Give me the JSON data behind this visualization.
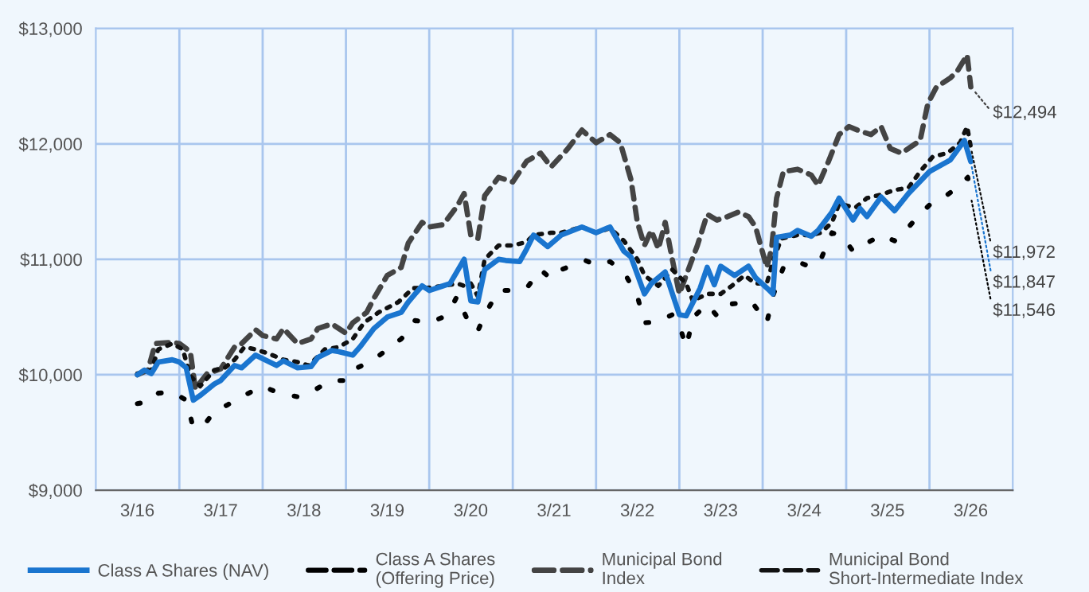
{
  "chart_data": {
    "type": "line",
    "xlim": [
      "2015-09",
      "2026-09"
    ],
    "ylim": [
      9000,
      13000
    ],
    "xticks": [
      {
        "value": "2016-03",
        "label": "3/16"
      },
      {
        "value": "2016-09",
        "label": null
      },
      {
        "value": "2017-03",
        "label": "3/17"
      },
      {
        "value": "2017-09",
        "label": null
      },
      {
        "value": "2018-03",
        "label": "3/18"
      },
      {
        "value": "2018-09",
        "label": null
      },
      {
        "value": "2019-03",
        "label": "3/19"
      },
      {
        "value": "2019-09",
        "label": null
      },
      {
        "value": "2020-03",
        "label": "3/20"
      },
      {
        "value": "2020-09",
        "label": null
      },
      {
        "value": "2021-03",
        "label": "3/21"
      },
      {
        "value": "2021-09",
        "label": null
      },
      {
        "value": "2022-03",
        "label": "3/22"
      },
      {
        "value": "2022-09",
        "label": null
      },
      {
        "value": "2023-03",
        "label": "3/23"
      },
      {
        "value": "2023-09",
        "label": null
      },
      {
        "value": "2024-03",
        "label": "3/24"
      },
      {
        "value": "2024-09",
        "label": null
      },
      {
        "value": "2025-03",
        "label": "3/25"
      },
      {
        "value": "2025-09",
        "label": null
      },
      {
        "value": "2026-03",
        "label": "3/26"
      }
    ],
    "yticks": [
      {
        "value": 9000,
        "label": "$9,000"
      },
      {
        "value": 10000,
        "label": "$10,000"
      },
      {
        "value": 11000,
        "label": "$11,000"
      },
      {
        "value": 12000,
        "label": "$12,000"
      },
      {
        "value": 13000,
        "label": "$13,000"
      }
    ],
    "grid": true,
    "legend": "bottom",
    "series": [
      {
        "name": "Class A Shares (NAV)",
        "color": "#1a75cf",
        "line_style": "solid",
        "x": [
          "2016-03",
          "2016-04",
          "2016-05",
          "2016-06",
          "2016-08",
          "2016-09",
          "2016-10",
          "2016-11",
          "2016-12",
          "2017-02",
          "2017-03",
          "2017-05",
          "2017-06",
          "2017-08",
          "2017-09",
          "2017-11",
          "2017-12",
          "2018-02",
          "2018-04",
          "2018-05",
          "2018-07",
          "2018-08",
          "2018-10",
          "2018-11",
          "2019-01",
          "2019-03",
          "2019-05",
          "2019-06",
          "2019-07",
          "2019-08",
          "2019-09",
          "2019-11",
          "2019-12",
          "2020-02",
          "2020-03",
          "2020-04",
          "2020-05",
          "2020-07",
          "2020-08",
          "2020-10",
          "2020-11",
          "2020-12",
          "2021-02",
          "2021-04",
          "2021-07",
          "2021-09",
          "2021-11",
          "2022-01",
          "2022-02",
          "2022-04",
          "2022-05",
          "2022-07",
          "2022-09",
          "2022-10",
          "2022-12",
          "2023-01",
          "2023-02",
          "2023-03",
          "2023-05",
          "2023-07",
          "2023-08",
          "2023-10",
          "2023-10-16",
          "2023-11",
          "2024-01",
          "2024-02",
          "2024-04",
          "2024-05",
          "2024-07",
          "2024-08",
          "2024-10",
          "2024-11",
          "2024-12",
          "2025-02",
          "2025-04",
          "2025-06",
          "2025-09",
          "2025-12",
          "2026-02",
          "2026-03"
        ],
        "values": [
          10000,
          10040,
          10010,
          10110,
          10130,
          10110,
          10060,
          9780,
          9820,
          9920,
          9950,
          10080,
          10060,
          10170,
          10140,
          10080,
          10120,
          10060,
          10070,
          10150,
          10210,
          10200,
          10170,
          10240,
          10400,
          10500,
          10540,
          10630,
          10700,
          10770,
          10730,
          10770,
          10790,
          11000,
          10640,
          10630,
          10910,
          11000,
          10990,
          10980,
          11090,
          11210,
          11110,
          11210,
          11280,
          11230,
          11280,
          11070,
          11020,
          10700,
          10790,
          10890,
          10520,
          10510,
          10750,
          10930,
          10780,
          10940,
          10860,
          10940,
          10840,
          10730,
          10700,
          11190,
          11210,
          11250,
          11200,
          11250,
          11410,
          11530,
          11340,
          11440,
          11370,
          11540,
          11420,
          11570,
          11760,
          11860,
          12030,
          11847
        ]
      },
      {
        "name": "Class A Shares\n(Offering Price)",
        "color": "#000000",
        "line_style": "dotted",
        "x": [
          "2016-03",
          "2016-05",
          "2016-06",
          "2016-08",
          "2016-10",
          "2016-11",
          "2017-01",
          "2017-02",
          "2017-04",
          "2017-06",
          "2017-09",
          "2017-11",
          "2018-01",
          "2018-02",
          "2018-04",
          "2018-06",
          "2018-07",
          "2018-09",
          "2018-10",
          "2019-01",
          "2019-03",
          "2019-05",
          "2019-06",
          "2019-07",
          "2019-09",
          "2019-11",
          "2019-12",
          "2020-01",
          "2020-03",
          "2020-04",
          "2020-05",
          "2020-07",
          "2020-09",
          "2020-11",
          "2021-01",
          "2021-02-16",
          "2021-04",
          "2021-07-16",
          "2021-09",
          "2021-11",
          "2022-01",
          "2022-03",
          "2022-04",
          "2022-06",
          "2022-08",
          "2022-09",
          "2022-10",
          "2022-11",
          "2023-01",
          "2023-02-13",
          "2023-04",
          "2023-07-16",
          "2023-09-19",
          "2023-10-19",
          "2023-12",
          "2024-02",
          "2024-04",
          "2024-05-13",
          "2024-07",
          "2024-08-19",
          "2024-10",
          "2024-12",
          "2025-02",
          "2025-04",
          "2025-05-19",
          "2025-07-22",
          "2025-09-16",
          "2025-11-19",
          "2026-01",
          "2026-02-16",
          "2026-03"
        ],
        "values": [
          9750,
          9770,
          9840,
          9850,
          9780,
          9540,
          9600,
          9680,
          9740,
          9810,
          9900,
          9850,
          9820,
          9810,
          9850,
          9920,
          9950,
          9950,
          10040,
          10130,
          10220,
          10310,
          10380,
          10470,
          10450,
          10500,
          10560,
          10680,
          10410,
          10380,
          10520,
          10730,
          10730,
          10750,
          10910,
          10830,
          10910,
          10990,
          10950,
          10980,
          10890,
          10680,
          10450,
          10460,
          10520,
          10430,
          10240,
          10500,
          10610,
          10510,
          10610,
          10630,
          10450,
          10700,
          10930,
          10980,
          10930,
          11000,
          11230,
          11190,
          11070,
          11140,
          11210,
          11160,
          11250,
          11390,
          11500,
          11560,
          11620,
          11710,
          11546
        ]
      },
      {
        "name": "Municipal Bond\nIndex",
        "color": "#444444",
        "line_style": "dashed",
        "x": [
          "2016-03",
          "2016-04-16",
          "2016-05-19",
          "2016-08",
          "2016-09",
          "2016-10-19",
          "2016-11-10",
          "2017-01",
          "2017-03",
          "2017-05",
          "2017-06",
          "2017-08",
          "2017-09",
          "2017-11",
          "2017-12",
          "2018-02",
          "2018-04",
          "2018-05",
          "2018-07",
          "2018-09",
          "2018-10",
          "2018-12",
          "2019-01",
          "2019-03",
          "2019-05",
          "2019-06",
          "2019-08",
          "2019-09",
          "2019-11",
          "2020-01",
          "2020-02",
          "2020-03",
          "2020-04",
          "2020-05",
          "2020-07",
          "2020-09",
          "2020-11",
          "2021-01",
          "2021-02-16",
          "2021-05",
          "2021-07",
          "2021-09",
          "2021-11",
          "2021-12-16",
          "2022-02",
          "2022-03",
          "2022-04",
          "2022-05",
          "2022-06",
          "2022-07",
          "2022-08",
          "2022-09",
          "2022-10",
          "2022-11-19",
          "2023-01",
          "2023-02-13",
          "2023-04",
          "2023-05-19",
          "2023-07",
          "2023-08",
          "2023-09-19",
          "2023-10-10",
          "2023-11",
          "2023-12",
          "2024-02",
          "2024-04",
          "2024-05",
          "2024-06-16",
          "2024-08",
          "2024-09-13",
          "2024-11",
          "2024-12-19",
          "2025-02",
          "2025-03-13",
          "2025-05",
          "2025-06",
          "2025-07-22",
          "2025-08-25",
          "2025-10",
          "2025-12",
          "2026-01",
          "2026-02-13",
          "2026-03"
        ],
        "values": [
          10000,
          10040,
          10270,
          10280,
          10270,
          10200,
          9880,
          10010,
          10050,
          10240,
          10270,
          10390,
          10340,
          10310,
          10400,
          10270,
          10310,
          10400,
          10440,
          10360,
          10450,
          10540,
          10660,
          10860,
          10930,
          11140,
          11320,
          11280,
          11300,
          11460,
          11570,
          11210,
          11180,
          11550,
          11710,
          11670,
          11850,
          11920,
          11800,
          11960,
          12120,
          12010,
          12080,
          12010,
          11690,
          11320,
          11120,
          11250,
          11090,
          11320,
          11000,
          10700,
          10860,
          11120,
          11390,
          11340,
          11370,
          11410,
          11370,
          11280,
          10930,
          11090,
          11530,
          11760,
          11780,
          11730,
          11640,
          11850,
          12080,
          12150,
          12110,
          12080,
          12150,
          11960,
          11920,
          11960,
          12030,
          12350,
          12490,
          12570,
          12630,
          12770,
          12494
        ]
      },
      {
        "name": "Municipal Bond\nShort-Intermediate Index",
        "color": "#111111",
        "line_style": "dotted",
        "x": [
          "2016-03",
          "2016-05",
          "2016-06",
          "2016-08",
          "2016-09-16",
          "2016-10-19",
          "2016-12",
          "2017-02",
          "2017-03-19",
          "2017-05",
          "2017-06-13",
          "2017-08",
          "2017-10",
          "2017-12",
          "2018-02",
          "2018-03-22",
          "2018-06",
          "2018-08",
          "2018-10",
          "2018-11-19",
          "2019-01-22",
          "2019-04-19",
          "2019-06-22",
          "2019-08-16",
          "2019-11",
          "2020-01",
          "2020-02",
          "2020-03",
          "2020-04",
          "2020-05",
          "2020-07",
          "2020-09",
          "2020-11",
          "2020-12",
          "2021-02-16",
          "2021-04",
          "2021-07",
          "2021-09",
          "2021-11",
          "2022-01",
          "2022-03",
          "2022-04",
          "2022-06",
          "2022-08",
          "2022-10",
          "2022-11",
          "2022-11-19",
          "2023-01",
          "2023-03",
          "2023-04-19",
          "2023-06-13",
          "2023-08",
          "2023-09-19",
          "2023-10-19",
          "2023-11-22",
          "2024-02",
          "2024-04",
          "2024-05-13",
          "2024-07",
          "2024-08",
          "2024-09-13",
          "2024-10-13",
          "2024-12",
          "2025-02",
          "2025-04",
          "2025-06",
          "2025-07-22",
          "2025-09-16",
          "2025-11-19",
          "2026-01-13",
          "2026-02-13",
          "2026-03"
        ],
        "values": [
          10010,
          10040,
          10220,
          10270,
          10220,
          9990,
          9900,
          10040,
          10060,
          10130,
          10240,
          10220,
          10180,
          10130,
          10110,
          10080,
          10220,
          10240,
          10310,
          10450,
          10540,
          10630,
          10750,
          10750,
          10770,
          10790,
          10770,
          10790,
          10680,
          11000,
          11120,
          11120,
          11150,
          11210,
          11230,
          11230,
          11280,
          11230,
          11270,
          11160,
          11000,
          10860,
          10770,
          10910,
          10790,
          10630,
          10660,
          10700,
          10700,
          10770,
          10860,
          10790,
          10790,
          11000,
          11180,
          11210,
          11210,
          11230,
          11320,
          11480,
          11460,
          11450,
          11530,
          11560,
          11600,
          11620,
          11760,
          11890,
          11920,
          12010,
          12150,
          11972
        ]
      }
    ],
    "annotations": [
      {
        "text": "$12,494",
        "x": "2026-03",
        "y": 12494
      },
      {
        "text": "$11,972",
        "x": "2026-03",
        "y": 11972
      },
      {
        "text": "$11,847",
        "x": "2026-03",
        "y": 11847
      },
      {
        "text": "$11,546",
        "x": "2026-03",
        "y": 11546
      }
    ]
  }
}
